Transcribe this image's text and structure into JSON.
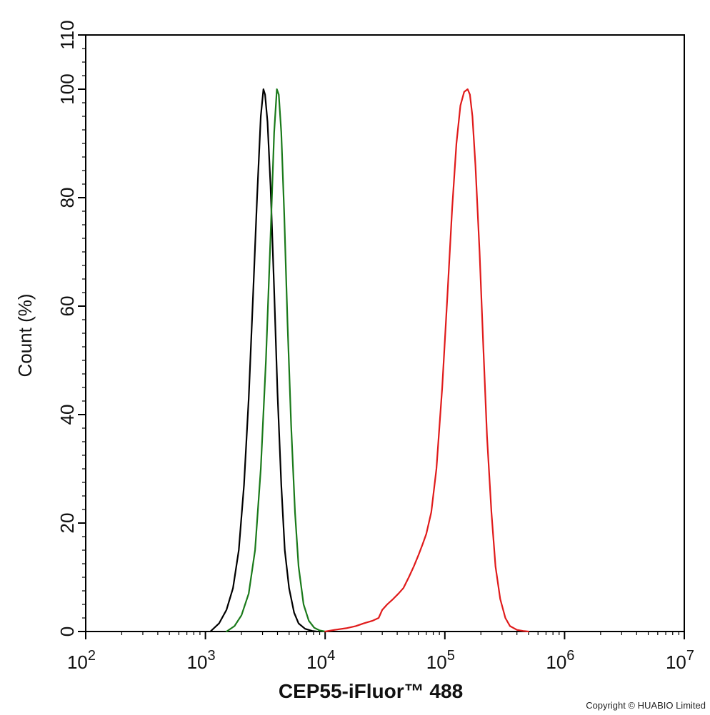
{
  "chart_data": {
    "type": "line",
    "xlabel": "CEP55-iFluor™ 488",
    "ylabel": "Count  (%)",
    "xscale": "log",
    "xlim": [
      100,
      10000000
    ],
    "ylim": [
      0,
      110
    ],
    "x_ticks": [
      {
        "base": "10",
        "exp": "2"
      },
      {
        "base": "10",
        "exp": "3"
      },
      {
        "base": "10",
        "exp": "4"
      },
      {
        "base": "10",
        "exp": "5"
      },
      {
        "base": "10",
        "exp": "6"
      },
      {
        "base": "10",
        "exp": "7"
      }
    ],
    "y_ticks": [
      "0",
      "20",
      "40",
      "60",
      "80",
      "100",
      "110"
    ],
    "y_tick_values": [
      0,
      20,
      40,
      60,
      80,
      100,
      110
    ],
    "grid": false,
    "legend": "none",
    "series": [
      {
        "color": "#000000",
        "x": [
          1100,
          1300,
          1500,
          1700,
          1900,
          2100,
          2300,
          2500,
          2700,
          2900,
          3050,
          3150,
          3300,
          3500,
          3750,
          4000,
          4300,
          4600,
          5000,
          5500,
          6000,
          6800,
          7800,
          8500
        ],
        "y": [
          0,
          1.5,
          4,
          8,
          15,
          27,
          43,
          62,
          80,
          95,
          100,
          99,
          94,
          82,
          63,
          44,
          27,
          15,
          8,
          3.5,
          1.5,
          0.5,
          0.1,
          0
        ]
      },
      {
        "color": "#1a7a1a",
        "x": [
          1500,
          1750,
          2000,
          2300,
          2600,
          2900,
          3200,
          3500,
          3750,
          3950,
          4100,
          4300,
          4550,
          4850,
          5200,
          5600,
          6000,
          6600,
          7300,
          8100,
          9000,
          10000
        ],
        "y": [
          0,
          1,
          3,
          7,
          15,
          30,
          50,
          73,
          92,
          100,
          99,
          92,
          77,
          57,
          38,
          22,
          12,
          5,
          2,
          0.7,
          0.2,
          0
        ]
      },
      {
        "color": "#e01b1b",
        "x": [
          10000,
          12000,
          15000,
          18000,
          21000,
          25000,
          28000,
          30000,
          33000,
          37000,
          41000,
          45000,
          50000,
          55000,
          60000,
          65000,
          70000,
          77000,
          85000,
          95000,
          105000,
          115000,
          125000,
          135000,
          145000,
          155000,
          162000,
          170000,
          180000,
          195000,
          210000,
          225000,
          245000,
          265000,
          290000,
          320000,
          350000,
          400000,
          450000,
          500000
        ],
        "y": [
          0,
          0.3,
          0.6,
          1,
          1.5,
          2,
          2.5,
          4,
          5,
          6,
          7,
          8,
          10,
          12,
          14,
          16,
          18,
          22,
          30,
          45,
          62,
          78,
          90,
          97,
          99.5,
          100,
          99,
          95,
          86,
          70,
          52,
          36,
          22,
          12,
          6,
          2.5,
          1,
          0.3,
          0.1,
          0
        ]
      }
    ]
  },
  "copyright": "Copyright © HUABIO Limited"
}
